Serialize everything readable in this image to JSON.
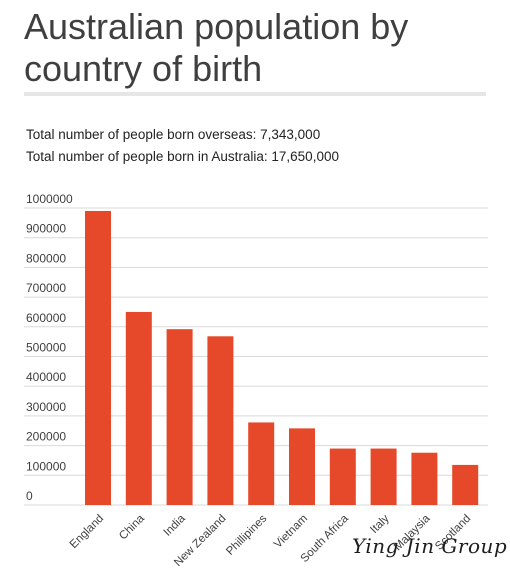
{
  "header": {
    "title": "Australian population by country of birth",
    "stat_overseas": "Total number of people born overseas: 7,343,000",
    "stat_australia": "Total number of people born in Australia: 17,650,000"
  },
  "watermark": "Ying Jin Group",
  "colors": {
    "bar": "#e5492a",
    "grid": "#d9d9d9",
    "text": "#3f3f3f"
  },
  "chart_data": {
    "type": "bar",
    "title": "",
    "xlabel": "",
    "ylabel": "",
    "categories": [
      "England",
      "China",
      "India",
      "New Zealand",
      "Phillipines",
      "Vietnam",
      "South Africa",
      "Italy",
      "Malaysia",
      "Scotland"
    ],
    "values": [
      990000,
      650000,
      592000,
      568000,
      278000,
      258000,
      190000,
      190000,
      176000,
      135000
    ],
    "ylim": [
      0,
      1000000
    ],
    "yticks": [
      0,
      100000,
      200000,
      300000,
      400000,
      500000,
      600000,
      700000,
      800000,
      900000,
      1000000
    ],
    "grid": true,
    "legend": "none"
  }
}
